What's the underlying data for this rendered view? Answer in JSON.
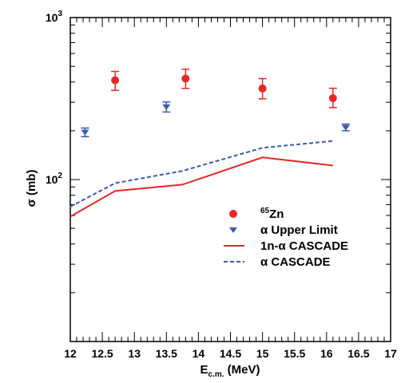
{
  "chart_data": {
    "type": "scatter",
    "xlabel": "E",
    "xlabel_sub": "c.m.",
    "xlabel_unit": " (MeV)",
    "ylabel": "σ (mb)",
    "xlim": [
      12,
      17
    ],
    "ylim": [
      10,
      1000
    ],
    "yscale": "log",
    "grid": false,
    "legend_position": "right",
    "x_ticks": [
      "12",
      "12.5",
      "13",
      "13.5",
      "14",
      "14.5",
      "15",
      "15.5",
      "16",
      "16.5",
      "17"
    ],
    "y_ticks": [
      {
        "value": 100,
        "base": "10",
        "exp": "2"
      },
      {
        "value": 1000,
        "base": "10",
        "exp": "3"
      }
    ],
    "series": [
      {
        "name_sup": "65",
        "name": "Zn",
        "kind": "points",
        "marker": "circle",
        "color": "#e8262a",
        "x": [
          12.7,
          13.8,
          15.0,
          16.1
        ],
        "y": [
          410,
          420,
          365,
          318
        ],
        "err_low": [
          55,
          55,
          50,
          40
        ],
        "err_high": [
          55,
          60,
          55,
          48
        ]
      },
      {
        "name": "α Upper Limit",
        "kind": "points",
        "marker": "triangle-down",
        "color": "#3b5ba8",
        "x": [
          12.23,
          13.5,
          16.3
        ],
        "y": [
          196,
          281,
          210
        ],
        "err_low": [
          12,
          20,
          10
        ],
        "err_high": [
          12,
          20,
          10
        ]
      },
      {
        "name": "1n-α CASCADE",
        "kind": "line",
        "style": "solid",
        "color": "#e8262a",
        "x": [
          12.0,
          12.7,
          13.75,
          15.0,
          16.1
        ],
        "y": [
          59,
          85,
          93,
          137,
          122
        ]
      },
      {
        "name": "α CASCADE",
        "kind": "line",
        "style": "dashed",
        "color": "#3b5ba8",
        "x": [
          12.0,
          12.7,
          13.75,
          15.0,
          16.1
        ],
        "y": [
          68,
          95,
          113,
          157,
          173
        ]
      }
    ]
  }
}
